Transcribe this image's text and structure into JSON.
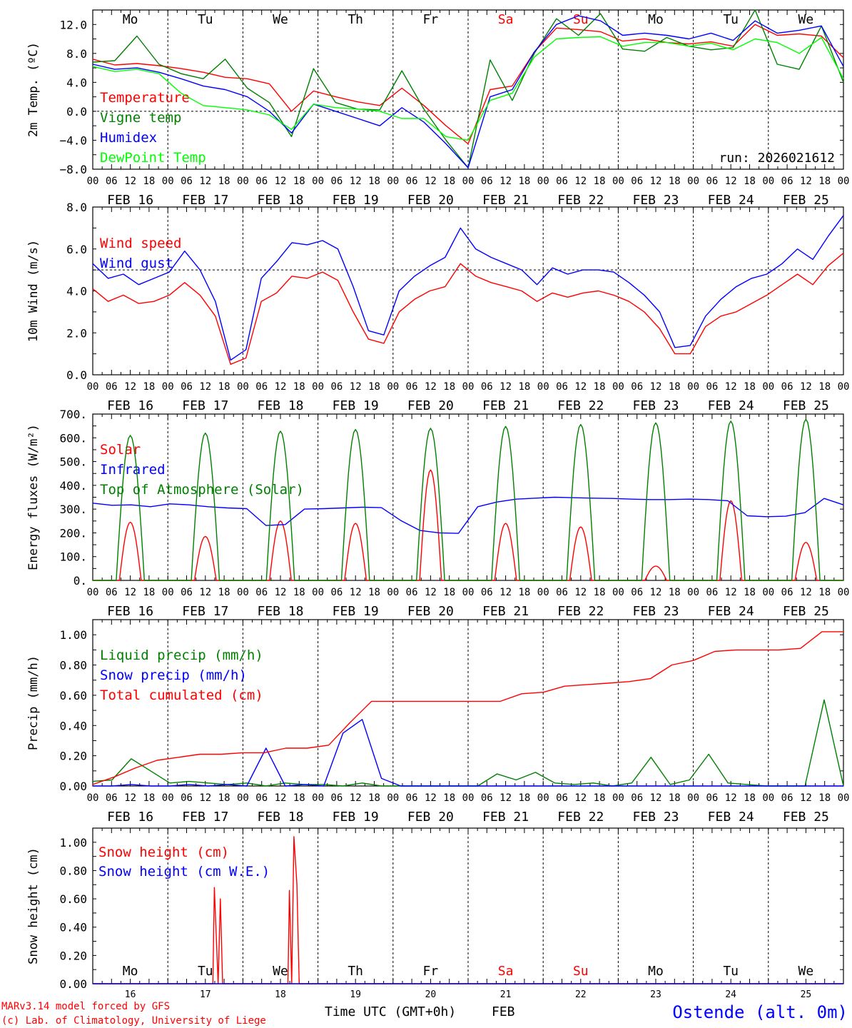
{
  "colors": {
    "red": "#ff0000",
    "green": "#008000",
    "blue": "#0000ff",
    "lightgreen": "#00ff00",
    "axis": "#000000",
    "location": "#0000ff"
  },
  "x_axis": {
    "days": 10,
    "hour_ticks": [
      "00",
      "06",
      "12",
      "18"
    ],
    "end_tick": "00",
    "date_labels": [
      "FEB 16",
      "FEB 17",
      "FEB 18",
      "FEB 19",
      "FEB 20",
      "FEB 21",
      "FEB 22",
      "FEB 23",
      "FEB 24",
      "FEB 25"
    ],
    "weekday_labels": [
      "Mo",
      "Tu",
      "We",
      "Th",
      "Fr",
      "Sa",
      "Su",
      "Mo",
      "Tu",
      "We"
    ],
    "weekday_colors": [
      "#000000",
      "#000000",
      "#000000",
      "#000000",
      "#000000",
      "#ff0000",
      "#ff0000",
      "#000000",
      "#000000",
      "#000000"
    ],
    "day_numbers": [
      "16",
      "17",
      "18",
      "19",
      "20",
      "21",
      "22",
      "23",
      "24",
      "25"
    ]
  },
  "footer": {
    "model": "MARv3.14 model forced by GFS",
    "copyright": "(c) Lab. of Climatology, University of Liege",
    "time_label": "Time UTC (GMT+0h)",
    "month": "FEB",
    "location": "Ostende (alt. 0m)"
  },
  "chart_data": [
    {
      "id": "temp",
      "type": "line",
      "ylabel": "2m Temp. (ºC)",
      "ylim": [
        -8,
        14
      ],
      "yticks": [
        -8,
        -4,
        0,
        4,
        8,
        12
      ],
      "ytick_labels": [
        "−8.0",
        "−4.0",
        "0.0",
        "4.0",
        "8.0",
        "12.0"
      ],
      "ref_line": 0,
      "run_label": "run: 2026021612",
      "series": [
        {
          "name": "Temperature",
          "color": "#ff0000",
          "values": [
            7.2,
            6.4,
            6.6,
            6.3,
            5.9,
            5.4,
            4.7,
            4.5,
            3.8,
            0.0,
            2.8,
            2.0,
            1.3,
            0.8,
            3.2,
            0.8,
            -2.0,
            -4.5,
            3.0,
            3.5,
            8.2,
            11.5,
            11.3,
            11.0,
            9.7,
            10.0,
            9.5,
            9.3,
            9.6,
            9.0,
            12.0,
            10.5,
            10.7,
            10.4,
            7.4
          ]
        },
        {
          "name": "Vigne temp",
          "color": "#008000",
          "values": [
            6.8,
            7.0,
            10.4,
            6.5,
            5.2,
            4.5,
            7.2,
            3.2,
            1.2,
            -3.5,
            5.9,
            1.2,
            0.3,
            0.2,
            5.6,
            0.3,
            -4.0,
            -7.8,
            7.1,
            1.5,
            8.0,
            12.8,
            10.5,
            13.5,
            8.6,
            8.3,
            10.2,
            9.0,
            8.5,
            8.8,
            14.0,
            6.5,
            5.8,
            11.8,
            4.0
          ]
        },
        {
          "name": "Humidex",
          "color": "#0000ff",
          "values": [
            6.5,
            5.8,
            6.0,
            5.4,
            4.5,
            3.5,
            3.0,
            2.0,
            0.0,
            -3.0,
            1.0,
            0.0,
            -1.0,
            -2.0,
            0.5,
            -1.5,
            -4.5,
            -7.8,
            2.0,
            3.0,
            8.2,
            12.0,
            13.2,
            12.5,
            10.5,
            10.8,
            10.5,
            10.0,
            10.8,
            9.8,
            12.5,
            10.8,
            11.2,
            11.8,
            6.2
          ]
        },
        {
          "name": "DewPoint Temp",
          "color": "#00ff00",
          "values": [
            6.2,
            5.5,
            5.8,
            5.2,
            2.5,
            0.8,
            0.5,
            0.2,
            -0.5,
            -2.5,
            1.0,
            0.5,
            0.3,
            0.0,
            -1.0,
            -1.0,
            -3.5,
            -4.0,
            1.5,
            2.5,
            7.5,
            10.0,
            10.2,
            10.3,
            9.0,
            9.5,
            9.5,
            9.0,
            9.4,
            8.5,
            10.0,
            9.5,
            8.0,
            10.2,
            4.5
          ]
        }
      ]
    },
    {
      "id": "wind",
      "type": "line",
      "ylabel": "10m Wind (m/s)",
      "ylim": [
        0,
        8
      ],
      "yticks": [
        0,
        2,
        4,
        6,
        8
      ],
      "ytick_labels": [
        "0.0",
        "2.0",
        "4.0",
        "6.0",
        "8.0"
      ],
      "ref_line": 5,
      "series": [
        {
          "name": "Wind speed",
          "color": "#ff0000",
          "values": [
            4.1,
            3.5,
            3.8,
            3.4,
            3.5,
            3.8,
            4.4,
            3.8,
            2.8,
            0.5,
            0.8,
            3.5,
            3.9,
            4.7,
            4.6,
            4.9,
            4.5,
            3.0,
            1.7,
            1.5,
            3.0,
            3.6,
            4.0,
            4.2,
            5.3,
            4.7,
            4.4,
            4.2,
            4.0,
            3.5,
            3.9,
            3.7,
            3.9,
            4.0,
            3.8,
            3.5,
            3.0,
            2.2,
            1.0,
            1.0,
            2.3,
            2.8,
            3.0,
            3.4,
            3.8,
            4.3,
            4.8,
            4.3,
            5.2,
            5.8
          ]
        },
        {
          "name": "Wind gust",
          "color": "#0000ff",
          "values": [
            5.3,
            4.6,
            4.8,
            4.3,
            4.6,
            4.9,
            5.9,
            5.0,
            3.5,
            0.7,
            1.2,
            4.6,
            5.4,
            6.3,
            6.2,
            6.4,
            6.0,
            4.2,
            2.1,
            1.9,
            4.0,
            4.7,
            5.2,
            5.6,
            7.0,
            6.0,
            5.6,
            5.3,
            5.0,
            4.3,
            5.1,
            4.8,
            5.0,
            5.0,
            4.9,
            4.4,
            3.8,
            3.0,
            1.3,
            1.4,
            2.8,
            3.6,
            4.2,
            4.6,
            4.8,
            5.3,
            6.0,
            5.5,
            6.6,
            7.6
          ]
        }
      ]
    },
    {
      "id": "energy",
      "type": "line",
      "ylabel": "Energy fluxes (W/m²)",
      "ylim": [
        0,
        700
      ],
      "yticks": [
        0,
        100,
        200,
        300,
        400,
        500,
        600,
        700
      ],
      "ytick_labels": [
        "0.",
        "100.",
        "200.",
        "300.",
        "400.",
        "500.",
        "600.",
        "700."
      ],
      "series": [
        {
          "name": "Solar",
          "color": "#ff0000",
          "daily_peak": [
            245,
            185,
            250,
            240,
            465,
            240,
            225,
            60,
            335,
            160
          ]
        },
        {
          "name": "Infrared",
          "color": "#0000ff",
          "values": [
            325,
            316,
            318,
            310,
            322,
            318,
            310,
            305,
            302,
            231,
            235,
            300,
            302,
            305,
            308,
            306,
            252,
            210,
            200,
            198,
            310,
            330,
            342,
            346,
            350,
            348,
            346,
            345,
            342,
            340,
            340,
            342,
            340,
            335,
            272,
            268,
            270,
            285,
            345,
            318
          ]
        },
        {
          "name": "Top of Atmosphere (Solar)",
          "color": "#008000",
          "daily_peak": [
            610,
            620,
            628,
            635,
            640,
            648,
            656,
            663,
            670,
            678
          ]
        }
      ]
    },
    {
      "id": "precip",
      "type": "line",
      "ylabel": "Precip (mm/h)",
      "ylim": [
        0,
        1.1
      ],
      "yticks": [
        0,
        0.2,
        0.4,
        0.6,
        0.8,
        1.0
      ],
      "ytick_labels": [
        "0.00",
        "0.20",
        "0.40",
        "0.60",
        "0.80",
        "1.00"
      ],
      "series": [
        {
          "name": "Liquid precip (mm/h)",
          "color": "#008000",
          "values": [
            0.03,
            0.04,
            0.18,
            0.1,
            0.02,
            0.03,
            0.02,
            0.01,
            0.02,
            0.0,
            0.02,
            0.01,
            0.01,
            0.0,
            0.02,
            0.0,
            0.0,
            0.0,
            0.0,
            0.0,
            0.0,
            0.08,
            0.04,
            0.09,
            0.02,
            0.01,
            0.02,
            0.0,
            0.02,
            0.19,
            0.01,
            0.04,
            0.21,
            0.02,
            0.01,
            0.0,
            0.0,
            0.0,
            0.57,
            0.0
          ]
        },
        {
          "name": "Snow precip (mm/h)",
          "color": "#0000ff",
          "values": [
            0.0,
            0.0,
            0.01,
            0.0,
            0.0,
            0.01,
            0.0,
            0.01,
            0.0,
            0.25,
            0.0,
            0.01,
            0.0,
            0.35,
            0.44,
            0.05,
            0.0,
            0.0,
            0.0,
            0.0,
            0.0,
            0.0,
            0.0,
            0.0,
            0.0,
            0.0,
            0.0,
            0.0,
            0.0,
            0.0,
            0.0,
            0.0,
            0.0,
            0.0,
            0.0,
            0.0,
            0.0,
            0.0,
            0.0,
            0.0
          ]
        },
        {
          "name": "Total cumulated (cm)",
          "color": "#ff0000",
          "values": [
            0.01,
            0.06,
            0.12,
            0.17,
            0.19,
            0.21,
            0.21,
            0.22,
            0.22,
            0.25,
            0.25,
            0.27,
            0.42,
            0.56,
            0.56,
            0.56,
            0.56,
            0.56,
            0.56,
            0.56,
            0.61,
            0.62,
            0.66,
            0.67,
            0.68,
            0.69,
            0.71,
            0.8,
            0.83,
            0.89,
            0.9,
            0.9,
            0.9,
            0.91,
            1.02,
            1.02
          ]
        }
      ]
    },
    {
      "id": "snow",
      "type": "line",
      "ylabel": "Snow height (cm)",
      "ylim": [
        0,
        1.1
      ],
      "yticks": [
        0,
        0.2,
        0.4,
        0.6,
        0.8,
        1.0
      ],
      "ytick_labels": [
        "0.00",
        "0.20",
        "0.40",
        "0.60",
        "0.80",
        "1.00"
      ],
      "series": [
        {
          "name": "Snow height (cm)",
          "color": "#ff0000",
          "points": [
            [
              0,
              0
            ],
            [
              1.6,
              0
            ],
            [
              1.62,
              0.68
            ],
            [
              1.67,
              0.0
            ],
            [
              1.7,
              0.6
            ],
            [
              1.73,
              0.0
            ],
            [
              2.6,
              0.0
            ],
            [
              2.62,
              0.66
            ],
            [
              2.65,
              0.0
            ],
            [
              2.68,
              1.04
            ],
            [
              2.72,
              0.7
            ],
            [
              2.75,
              0.0
            ],
            [
              10,
              0
            ]
          ]
        },
        {
          "name": "Snow height (cm W.E.)",
          "color": "#0000ff",
          "points": [
            [
              0,
              0
            ],
            [
              10,
              0
            ]
          ]
        }
      ]
    }
  ]
}
